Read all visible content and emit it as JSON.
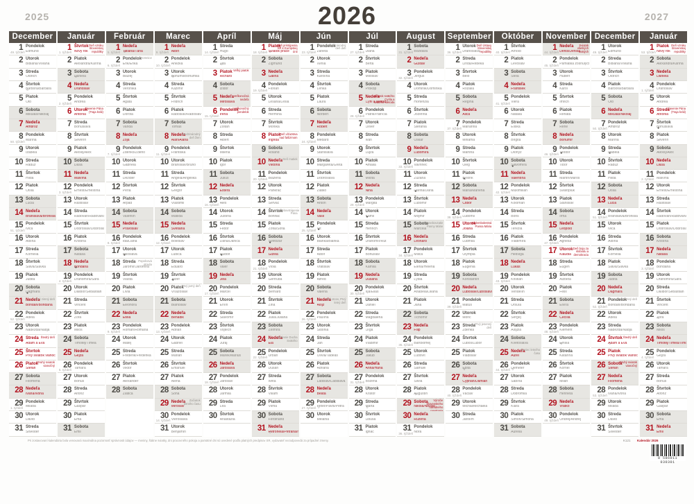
{
  "title": "2026",
  "year_left": "2025",
  "year_right": "2027",
  "weekday_names": [
    "Pondelok",
    "Utorok",
    "Streda",
    "Štvrtok",
    "Piatok",
    "Sobota",
    "Nedeľa"
  ],
  "footer": {
    "fine_print": "Pri zostavovaní kalendária bola venovaná maximálna pozornosť správnosti údajov — meniny, štátne sviatky, dni pracovného pokoja a pamätné dni sú uvedené podľa platných predpisov SR, vydavateľ nezodpovedá za prípadné zmeny.",
    "code": "K121",
    "red_label": "Kalendár 2026",
    "barcode_digits": "8 586011 030301"
  },
  "months": [
    {
      "name": "December",
      "start": 0,
      "len": 31,
      "names": [
        "Edmund",
        "Bibiána/Viviána",
        "Oldrich",
        "Barbora/Barbara",
        "Oto",
        "Mikuláš/Nikolaj",
        "Ambróz",
        "Marína",
        "Izabela",
        "Radúz",
        "Hilda",
        "Otília",
        "Lucia",
        "Branislava/Bronislava",
        "Ivica",
        "Albína",
        "Kornélia",
        "Sláva/Slávka",
        "Judita",
        "Dagmara",
        "Bohdan/Bohdana",
        "Adela",
        "Nadežda/Nadja",
        "Adam a Eva",
        "Prvý sviatok vianočný",
        "Štefan",
        "Filomena",
        "Ivana/Ivona",
        "Milada",
        "Dávid",
        "Silvester"
      ],
      "red": [
        24,
        25,
        26
      ],
      "wk": {
        "1": "49. týždeň",
        "8": "50. týždeň",
        "15": "51. týždeň",
        "22": "52. týždeň",
        "29": "1. týždeň"
      },
      "an": {
        "21": [
          "Prvý zimný deň",
          0
        ],
        "24": [
          "Štedrý deň",
          1
        ],
        "26": [
          "Druhý sviatok vianočný",
          1
        ]
      },
      "moon": {
        "4": "f",
        "20": "n"
      }
    },
    {
      "name": "Január",
      "start": 3,
      "len": 31,
      "names": [
        "Nový rok",
        "Alexandra/Karína",
        "Daniela",
        "Drahoslav",
        "Andrea",
        "Antónia",
        "Bohuslava",
        "Severín",
        "Alexej/Alex",
        "Dáša",
        "Malvína",
        "Ernest/Ernestína",
        "Rastislav",
        "Radovan/Radovana",
        "Dobroslav/Dobroslava",
        "Kristína",
        "Nataša",
        "Bohdana",
        "Drahomíra/Sára",
        "Dalibor/Sebastián",
        "Vincent",
        "Zora",
        "Miloš",
        "Timotej/Tímea",
        "Gejza",
        "Tamara",
        "Bohuš",
        "Alfonz",
        "Gašpar",
        "Ema",
        "Emil"
      ],
      "red": [
        1,
        6
      ],
      "wk": {
        "1": "1. týždeň",
        "5": "2. týždeň",
        "12": "3. týždeň",
        "19": "4. týždeň",
        "26": "5. týždeň"
      },
      "an": {
        "1": [
          "Deň vzniku Slovenskej republiky",
          1
        ],
        "6": [
          "Zjavenie Pána (Traja králi)",
          1
        ]
      },
      "moon": {
        "3": "f",
        "18": "n"
      }
    },
    {
      "name": "Február",
      "start": 6,
      "len": 28,
      "names": [
        "Tatiana/Táňa",
        "Erik/Erika",
        "Blažej",
        "Veronika",
        "Agáta",
        "Dorota",
        "Vanda",
        "Zoja",
        "Zdenko/Zdeno",
        "Gabriela",
        "Dezider",
        "Perla",
        "Arpád",
        "Valentín",
        "Pravoslav",
        "Ida/Liana",
        "Miloslava",
        "Jaromír/Jaromíra",
        "Vlasta",
        "Lívia",
        "Eleonóra",
        "Etela",
        "Roman/Romana",
        "Matej",
        "Frederik/Frederika",
        "Viktor",
        "Alexander",
        "Zlatica"
      ],
      "red": [],
      "wk": {
        "1": "5. týždeň",
        "2": "6. týždeň",
        "9": "7. týždeň",
        "16": "8. týždeň",
        "23": "9. týždeň"
      },
      "an": {
        "2": [
          "Hromnice",
          0
        ],
        "18": [
          "Popolcová streda",
          0
        ]
      },
      "moon": {
        "1": "f",
        "17": "n"
      }
    },
    {
      "name": "Marec",
      "start": 6,
      "len": 31,
      "names": [
        "Albín",
        "Anežka",
        "Bohumil/Bohumila",
        "Kazimír",
        "Fridrich",
        "Radoslav/Radoslava",
        "Tomáš",
        "Alan/Alana",
        "Františka",
        "Branislav/Bruno",
        "Angela/Angelika",
        "Gregor",
        "Vlastimil",
        "Matilda",
        "Svetlana",
        "Boleslav",
        "Ľubica",
        "Eduard",
        "Jozef",
        "Víťazoslav",
        "Blahoslav",
        "Beňadik",
        "Adrián",
        "Gabriel",
        "Marián",
        "Emanuel",
        "Alena",
        "Soňa",
        "Miroslav",
        "Vieroslava",
        "Benjamín"
      ],
      "red": [],
      "wk": {
        "1": "9. týždeň",
        "2": "10. týždeň",
        "9": "11. týždeň",
        "16": "12. týždeň",
        "23": "13. týždeň",
        "30": "14. týždeň"
      },
      "an": {
        "8": [
          "Medzinárodný deň žien",
          0
        ],
        "20": [
          "Prvý jarný deň",
          0
        ],
        "29": [
          "Začiatok letného času",
          0
        ]
      },
      "moon": {
        "3": "f",
        "19": "n"
      }
    },
    {
      "name": "Apríl",
      "start": 2,
      "len": 30,
      "names": [
        "Hugo",
        "Zita",
        "Richard",
        "Izidor",
        "Miroslava",
        "Irena",
        "Zoltán",
        "Albert",
        "Milena",
        "Igor",
        "Július",
        "Estera",
        "Aleš",
        "Justína",
        "Fedor",
        "Dana/Danica",
        "Rudolf",
        "Valér",
        "Jela",
        "Marcel",
        "Ervín",
        "Slavomír",
        "Vojtech",
        "Juraj",
        "Marek/Márius",
        "Jaroslava",
        "Jaroslav",
        "Jarmila",
        "Lea",
        "Anastázia"
      ],
      "red": [
        3,
        6
      ],
      "wk": {
        "1": "14. týždeň",
        "6": "15. týždeň",
        "13": "16. týždeň",
        "20": "17. týždeň",
        "27": "18. týždeň"
      },
      "an": {
        "3": [
          "Veľký piatok",
          1
        ],
        "5": [
          "Veľkonočná nedeľa",
          1
        ],
        "6": [
          "Veľkonočný pondelok",
          1
        ]
      },
      "moon": {
        "2": "f",
        "17": "n"
      }
    },
    {
      "name": "Máj",
      "start": 4,
      "len": 31,
      "names": [
        "Sviatok práce",
        "Žigmund",
        "Galina",
        "Florián",
        "Lesana/Lesia",
        "Hermína",
        "Monika",
        "Ingrida",
        "Roland",
        "Viktória",
        "Blažena",
        "Pankrác",
        "Servác",
        "Bonifác",
        "Žofia/Sofia",
        "Svetozár",
        "Gizela",
        "Viola",
        "Gertrúda",
        "Bernard",
        "Zina",
        "Júlia/Juliana",
        "Želmíra",
        "Ela",
        "Urban",
        "Dušan",
        "Iveta",
        "Viliam",
        "Vilma",
        "Ferdinand",
        "Petronela/Petrana/Nela"
      ],
      "red": [
        1,
        8
      ],
      "wk": {
        "1": "18. týždeň",
        "4": "19. týždeň",
        "11": "20. týždeň",
        "18": "21. týždeň",
        "25": "22. týždeň"
      },
      "an": {
        "1": [
          "Deň pristúpenia SR k Európskej únii",
          1
        ],
        "8": [
          "Deň víťazstva nad fašizmom",
          1
        ],
        "10": [
          "Deň matiek",
          0
        ],
        "14": [
          "Nanebovstúpenie Pána",
          0
        ],
        "24": [
          "Zoslanie Ducha Svätého",
          0
        ]
      },
      "moon": {
        "1": "f",
        "16": "n",
        "31": "f"
      }
    },
    {
      "name": "Jún",
      "start": 0,
      "len": 30,
      "names": [
        "Žaneta",
        "Xénia",
        "Karolína",
        "Lenka",
        "Laura",
        "Norbert",
        "Róbert",
        "Medard",
        "Stanislava",
        "Margaréta/Gréta",
        "Dobroslava",
        "Zlatko",
        "Anton",
        "Vasil",
        "Vít",
        "Bianka/Blanka",
        "Adolf",
        "Vratislav",
        "Alfréd",
        "Valéria",
        "Alojz",
        "Paulína",
        "Sidónia",
        "Ján",
        "Olívia/Tadeáš",
        "Adriána",
        "Ladislav/Ladislava",
        "Beáta",
        "Peter/Pavol/Petra",
        "Melánia"
      ],
      "red": [],
      "wk": {
        "1": "23. týždeň",
        "8": "24. týždeň",
        "15": "25. týždeň",
        "22": "26. týždeň",
        "29": "27. týždeň"
      },
      "an": {
        "1": [
          "Medzinárodný deň detí",
          0
        ],
        "21": [
          "Deň otcov, Prvý letný deň",
          0
        ]
      },
      "moon": {
        "15": "n",
        "29": "f"
      }
    },
    {
      "name": "Júl",
      "start": 2,
      "len": 31,
      "names": [
        "Diana",
        "Berta",
        "Miloslav",
        "Prokop",
        "Cyril a Metod",
        "Patrik/Patrícia",
        "Oliver",
        "Ivan",
        "Lujza",
        "Amália",
        "Milota",
        "Nina",
        "Margita",
        "Kamil",
        "Henrich",
        "Drahomír/Rút",
        "Bohuslav",
        "Kamila",
        "Dušana",
        "Iľja/Eliáš",
        "Daniel",
        "Magdaléna",
        "Oľga",
        "Vladimír",
        "Jakub",
        "Anna/Hana",
        "Božena",
        "Krištof",
        "Marta",
        "Libuša",
        "Ignác"
      ],
      "red": [
        5
      ],
      "wk": {
        "1": "27. týždeň",
        "6": "28. týždeň",
        "13": "29. týždeň",
        "20": "30. týždeň",
        "27": "31. týždeň"
      },
      "an": {
        "5": [
          "Sviatok svätého Cyrila a svätého Metoda",
          1
        ]
      },
      "moon": {
        "14": "n",
        "29": "f"
      }
    },
    {
      "name": "August",
      "start": 5,
      "len": 31,
      "names": [
        "Božidara",
        "Gustáv",
        "Jerguš",
        "Dominik/Dominika",
        "Hortenzia",
        "Jozefína",
        "Štefánia",
        "Oskar",
        "Ľubomíra",
        "Vavrinec",
        "Zuzana",
        "Darina/Dária",
        "Ľubomír",
        "Mojmír",
        "Marcela",
        "Leonard",
        "Milica",
        "Elena/Helena",
        "Lýdia",
        "Anabela/Liliana",
        "Jana",
        "Tichomír",
        "Filip",
        "Bartolomej",
        "Ľudovít",
        "Samuel",
        "Silvia",
        "Augustín",
        "Nikola/Nikolaj",
        "Ružena",
        "Nora"
      ],
      "red": [
        29
      ],
      "wk": {
        "1": "31. týždeň",
        "3": "32. týždeň",
        "10": "33. týždeň",
        "17": "34. týždeň",
        "24": "35. týždeň",
        "31": "36. týždeň"
      },
      "an": {
        "15": [
          "Nanebovzatie Panny Márie",
          0
        ],
        "29": [
          "Výročie Slovenského národného povstania",
          1
        ]
      },
      "moon": {
        "12": "n",
        "28": "f"
      }
    },
    {
      "name": "September",
      "start": 1,
      "len": 30,
      "names": [
        "Drahoslava",
        "Linda/Rebeka",
        "Belo",
        "Rozália",
        "Regína",
        "Alica",
        "Marianna",
        "Miriama",
        "Martina",
        "Oleg",
        "Bystrík",
        "Mária/Marlena",
        "Ctibor",
        "Ľudomil",
        "Jolana",
        "Ľudmila",
        "Olympia",
        "Eugénia",
        "Konštantín",
        "Ľuboslav/Ľuboslava",
        "Matúš",
        "Móric",
        "Zdenka",
        "Ľuboš/Ľubor",
        "Vladislav",
        "Edita",
        "Cyprián/Damián",
        "Václav",
        "Michal/Michaela",
        "Jarolím"
      ],
      "red": [
        15
      ],
      "wk": {
        "1": "36. týždeň",
        "7": "37. týždeň",
        "14": "38. týždeň",
        "21": "39. týždeň",
        "28": "40. týždeň"
      },
      "an": {
        "1": [
          "Deň Ústavy Slovenskej republiky",
          1
        ],
        "15": [
          "Sedembolestná Panna Mária",
          1
        ],
        "23": [
          "Prvý jesenný deň",
          0
        ]
      },
      "moon": {
        "11": "n",
        "26": "f"
      }
    },
    {
      "name": "Október",
      "start": 3,
      "len": 31,
      "names": [
        "Arnold",
        "Levoslav",
        "Stela",
        "František",
        "Viera",
        "Natália",
        "Eliška",
        "Brigita",
        "Dionýz",
        "Slavomíra",
        "Valentína",
        "Maximilián",
        "Koloman",
        "Boris",
        "Terézia",
        "Vladimíra",
        "Hedviga",
        "Lukáš",
        "Kristián",
        "Vendelín",
        "Uršuľa",
        "Sergej",
        "Alojzia",
        "Kvetoslava",
        "Aurel",
        "Demeter",
        "Sabína",
        "Dobromila",
        "Klára",
        "Šimon/Simona",
        "Aurélia"
      ],
      "red": [],
      "wk": {
        "1": "40. týždeň",
        "5": "41. týždeň",
        "12": "42. týždeň",
        "19": "43. týždeň",
        "26": "44. týždeň"
      },
      "an": {
        "25": [
          "Koniec letného času",
          0
        ]
      },
      "moon": {
        "10": "n",
        "26": "f"
      }
    },
    {
      "name": "November",
      "start": 6,
      "len": 30,
      "names": [
        "Denis/Denisa",
        "Pamiatka zosnulých",
        "Hubert",
        "Karol",
        "Imrich",
        "Renáta",
        "René",
        "Bohumír",
        "Teodor",
        "Tibor",
        "Martin/Maroš",
        "Svätopluk",
        "Stanislav",
        "Irma",
        "Leopold",
        "Agnesa",
        "Klaudia",
        "Eugen",
        "Alžbeta",
        "Félix",
        "Elvíra",
        "Cecília",
        "Klement",
        "Emília",
        "Katarína",
        "Kornel",
        "Milan",
        "Henrieta",
        "Vratko",
        "Ondrej/Andrej"
      ],
      "red": [
        1,
        17
      ],
      "wk": {
        "1": "44. týždeň",
        "2": "45. týždeň",
        "9": "46. týždeň",
        "16": "47. týždeň",
        "23": "48. týždeň",
        "30": "49. týždeň"
      },
      "an": {
        "1": [
          "Sviatok všetkých svätých",
          1
        ],
        "17": [
          "Deň boja za slobodu a demokraciu",
          1
        ]
      },
      "moon": {
        "9": "n",
        "24": "f"
      }
    },
    {
      "name": "December",
      "start": 1,
      "len": 31,
      "names": [
        "Edmund",
        "Bibiána/Viviána",
        "Oldrich",
        "Barbora/Barbara",
        "Oto",
        "Mikuláš/Nikolaj",
        "Ambróz",
        "Marína",
        "Izabela",
        "Radúz",
        "Hilda",
        "Otília",
        "Lucia",
        "Branislava/Bronislava",
        "Ivica",
        "Albína",
        "Kornélia",
        "Sláva/Slávka",
        "Judita",
        "Dagmara",
        "Bohdan/Bohdana",
        "Adela",
        "Nadežda/Nadja",
        "Adam a Eva",
        "Prvý sviatok vianočný",
        "Štefan",
        "Filomena",
        "Ivana/Ivona",
        "Milada",
        "Dávid",
        "Silvester"
      ],
      "red": [
        24,
        25,
        26
      ],
      "wk": {
        "1": "49. týždeň",
        "7": "50. týždeň",
        "14": "51. týždeň",
        "21": "52. týždeň",
        "28": "53. týždeň"
      },
      "an": {
        "21": [
          "Prvý zimný deň",
          0
        ],
        "24": [
          "Štedrý deň",
          1
        ],
        "26": [
          "Druhý sviatok vianočný",
          1
        ]
      },
      "moon": {
        "9": "n",
        "24": "f"
      }
    },
    {
      "name": "Január",
      "start": 4,
      "len": 31,
      "names": [
        "Nový rok",
        "Alexandra/Karína",
        "Daniela",
        "Drahoslav",
        "Andrea",
        "Antónia",
        "Bohuslava",
        "Severín",
        "Alexej/Alex",
        "Dáša",
        "Malvína",
        "Ernest/Ernestína",
        "Rastislav",
        "Radovan/Radovana",
        "Dobroslav/Dobroslava",
        "Kristína",
        "Nataša",
        "Bohdana",
        "Drahomíra/Sára",
        "Dalibor/Sebastián",
        "Vincent",
        "Zora",
        "Miloš",
        "Timotej/Tímea/Timon",
        "Gejza",
        "Tamara",
        "Bohuš",
        "Alfonz",
        "Gašpar",
        "Ema",
        "Emil"
      ],
      "red": [
        1,
        6
      ],
      "wk": {
        "1": "53. týždeň",
        "4": "1. týždeň",
        "11": "2. týždeň",
        "18": "3. týždeň",
        "25": "4. týždeň"
      },
      "an": {
        "1": [
          "Deň vzniku Slovenskej republiky",
          1
        ],
        "6": [
          "Zjavenie Pána (Traja králi)",
          1
        ]
      },
      "moon": {
        "7": "n",
        "22": "f"
      }
    }
  ]
}
